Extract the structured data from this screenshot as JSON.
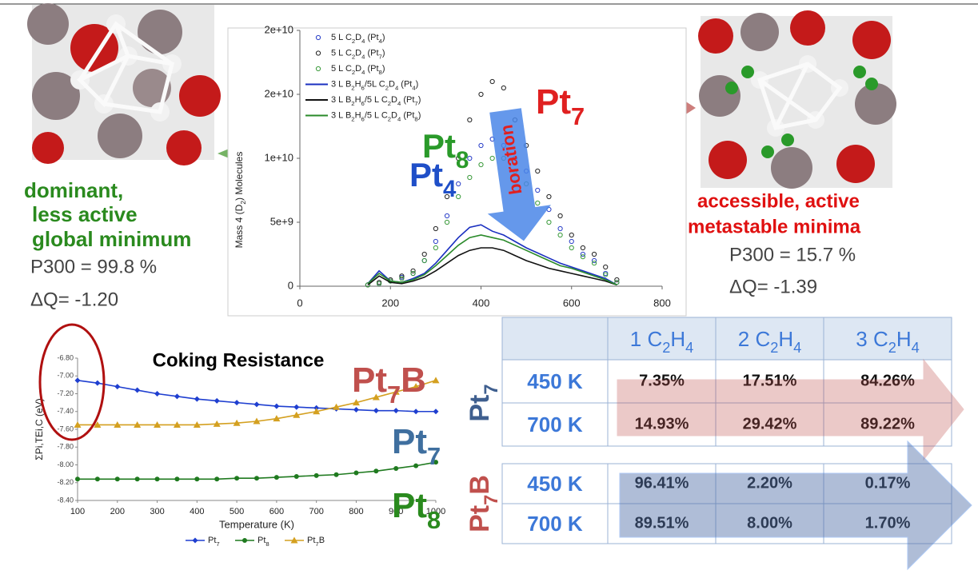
{
  "chart_data": [
    {
      "type": "scatter",
      "y_label": "Mass 4 (D2) Molecules",
      "x": [
        150,
        175,
        200,
        225,
        250,
        275,
        300,
        325,
        350,
        375,
        400,
        425,
        450,
        475,
        500,
        525,
        550,
        575,
        600,
        625,
        650,
        675,
        700
      ],
      "xlim": [
        0,
        800
      ],
      "xticks": [
        0,
        200,
        400,
        600,
        800
      ],
      "ylim": [
        0,
        20000000000.0
      ],
      "yticks": [
        0,
        {
          "value": 5000000000.0,
          "label": "5e+9"
        },
        {
          "value": 10000000000.0,
          "label": "1e+10"
        },
        {
          "value": 15000000000.0,
          "label": "2e+10"
        },
        {
          "value": 20000000000.0,
          "label": "2e+10"
        }
      ],
      "series": [
        {
          "name": "5 L C2D4 (Pt4)",
          "color": "#2a3fc8",
          "style": "markers",
          "values": [
            100000000.0,
            200000000.0,
            400000000.0,
            700000000.0,
            1000000000.0,
            2000000000.0,
            3500000000.0,
            5500000000.0,
            8000000000.0,
            10000000000.0,
            11000000000.0,
            11500000000.0,
            11000000000.0,
            10000000000.0,
            9000000000.0,
            7500000000.0,
            6000000000.0,
            4500000000.0,
            3500000000.0,
            2500000000.0,
            2000000000.0,
            1000000000.0,
            300000000.0
          ]
        },
        {
          "name": "5 L C2D4 (Pt7)",
          "color": "#222222",
          "style": "markers",
          "values": [
            100000000.0,
            300000000.0,
            500000000.0,
            800000000.0,
            1200000000.0,
            2500000000.0,
            4500000000.0,
            7000000000.0,
            10000000000.0,
            13000000000.0,
            15000000000.0,
            16000000000.0,
            15500000000.0,
            13000000000.0,
            11000000000.0,
            9000000000.0,
            7000000000.0,
            5500000000.0,
            4000000000.0,
            3000000000.0,
            2500000000.0,
            1500000000.0,
            500000000.0
          ]
        },
        {
          "name": "5 L C2D4 (Pt8)",
          "color": "#3a9a3a",
          "style": "markers",
          "values": [
            100000000.0,
            200000000.0,
            400000000.0,
            600000000.0,
            1000000000.0,
            2000000000.0,
            3000000000.0,
            5000000000.0,
            7000000000.0,
            8500000000.0,
            9500000000.0,
            10000000000.0,
            10000000000.0,
            9000000000.0,
            8000000000.0,
            6500000000.0,
            5000000000.0,
            4000000000.0,
            3000000000.0,
            2300000000.0,
            1800000000.0,
            900000000.0,
            300000000.0
          ]
        },
        {
          "name": "3 L B2H6/5L C2D4 (Pt4)",
          "color": "#1a2fc0",
          "style": "line",
          "values": [
            200000000.0,
            1200000000.0,
            400000000.0,
            300000000.0,
            600000000.0,
            1000000000.0,
            1800000000.0,
            2800000000.0,
            3800000000.0,
            4600000000.0,
            4800000000.0,
            4300000000.0,
            4000000000.0,
            3500000000.0,
            3000000000.0,
            2600000000.0,
            2200000000.0,
            1800000000.0,
            1500000000.0,
            1200000000.0,
            900000000.0,
            600000000.0,
            100000000.0
          ]
        },
        {
          "name": "3 L B2H6/5 L C2D4 (Pt7)",
          "color": "#111111",
          "style": "line",
          "values": [
            100000000.0,
            800000000.0,
            300000000.0,
            200000000.0,
            400000000.0,
            700000000.0,
            1200000000.0,
            1800000000.0,
            2400000000.0,
            2800000000.0,
            3000000000.0,
            3000000000.0,
            2800000000.0,
            2400000000.0,
            2000000000.0,
            1700000000.0,
            1400000000.0,
            1200000000.0,
            1000000000.0,
            800000000.0,
            600000000.0,
            400000000.0,
            100000000.0
          ]
        },
        {
          "name": "3 L B2H6/5 L C2D4 (Pt8)",
          "color": "#2a8a2a",
          "style": "line",
          "values": [
            200000000.0,
            1000000000.0,
            400000000.0,
            300000000.0,
            500000000.0,
            900000000.0,
            1600000000.0,
            2400000000.0,
            3200000000.0,
            3800000000.0,
            4000000000.0,
            3800000000.0,
            3600000000.0,
            3200000000.0,
            2800000000.0,
            2400000000.0,
            2000000000.0,
            1600000000.0,
            1400000000.0,
            1100000000.0,
            800000000.0,
            500000000.0,
            100000000.0
          ]
        }
      ],
      "annotations": [
        "boration",
        "Pt8",
        "Pt4",
        "Pt7"
      ]
    },
    {
      "type": "line",
      "title": "Coking Resistance",
      "x_label": "Temperature (K)",
      "y_label": "ΣPi,TEi,C (eV)",
      "x": [
        100,
        150,
        200,
        250,
        300,
        350,
        400,
        450,
        500,
        550,
        600,
        650,
        700,
        750,
        800,
        850,
        900,
        950,
        1000
      ],
      "xlim": [
        100,
        1000
      ],
      "xticks": [
        100,
        200,
        300,
        400,
        500,
        600,
        700,
        800,
        900,
        1000
      ],
      "ylim": [
        -8.4,
        -6.8
      ],
      "yticks": [
        {
          "value": -6.8,
          "label": "-6.80"
        },
        {
          "value": -7,
          "label": "-7.00"
        },
        {
          "value": -7.2,
          "label": "-7.20"
        },
        {
          "value": -7.4,
          "label": "-7.40"
        },
        {
          "value": -7.6,
          "label": "-7.60"
        },
        {
          "value": -7.8,
          "label": "-7.80"
        },
        {
          "value": -8,
          "label": "-8.00"
        },
        {
          "value": -8.2,
          "label": "-8.20"
        },
        {
          "value": -8.4,
          "label": "-8.40"
        }
      ],
      "series": [
        {
          "name": "Pt7",
          "color": "#1f3fd0",
          "marker": "diamond",
          "values": [
            -7.05,
            -7.08,
            -7.12,
            -7.16,
            -7.2,
            -7.23,
            -7.26,
            -7.28,
            -7.3,
            -7.32,
            -7.34,
            -7.35,
            -7.36,
            -7.37,
            -7.38,
            -7.39,
            -7.39,
            -7.4,
            -7.4
          ]
        },
        {
          "name": "Pt8",
          "color": "#1f7a1f",
          "marker": "circle",
          "values": [
            -8.16,
            -8.16,
            -8.16,
            -8.16,
            -8.16,
            -8.16,
            -8.16,
            -8.16,
            -8.15,
            -8.15,
            -8.14,
            -8.13,
            -8.12,
            -8.11,
            -8.09,
            -8.07,
            -8.04,
            -8.01,
            -7.97
          ]
        },
        {
          "name": "Pt7B",
          "color": "#d4a020",
          "marker": "triangle",
          "values": [
            -7.55,
            -7.55,
            -7.55,
            -7.55,
            -7.55,
            -7.55,
            -7.55,
            -7.54,
            -7.53,
            -7.51,
            -7.48,
            -7.44,
            -7.4,
            -7.35,
            -7.3,
            -7.24,
            -7.18,
            -7.12,
            -7.05
          ]
        }
      ],
      "annotations": [
        "Pt7B",
        "Pt7",
        "Pt8"
      ]
    }
  ],
  "left_caption": {
    "description": [
      "dominant,",
      "less active",
      "global minimum"
    ],
    "probability": "P300 = 99.8 %",
    "charge": "ΔQ= -1.20"
  },
  "right_caption": {
    "description": [
      "accessible, active",
      "metastable minima"
    ],
    "probability": "P300 = 15.7 %",
    "charge": "ΔQ= -1.39"
  },
  "table": {
    "columns": [
      "1 C2H4",
      "2 C2H4",
      "3 C2H4"
    ],
    "groups": [
      {
        "name": "Pt7",
        "rows": [
          {
            "label": "450 K",
            "cells": [
              "7.35%",
              "17.51%",
              "84.26%"
            ]
          },
          {
            "label": "700 K",
            "cells": [
              "14.93%",
              "29.42%",
              "89.22%"
            ]
          }
        ]
      },
      {
        "name": "Pt7B",
        "rows": [
          {
            "label": "450 K",
            "cells": [
              "96.41%",
              "2.20%",
              "0.17%"
            ]
          },
          {
            "label": "700 K",
            "cells": [
              "89.51%",
              "8.00%",
              "1.70%"
            ]
          }
        ]
      }
    ]
  }
}
